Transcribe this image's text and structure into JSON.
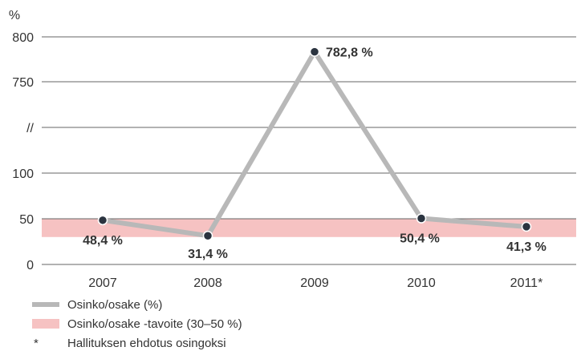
{
  "chart_data": {
    "type": "line",
    "ylabel": "%",
    "categories": [
      "2007",
      "2008",
      "2009",
      "2010",
      "2011*"
    ],
    "y_ticks": [
      "0",
      "50",
      "100",
      "//",
      "750",
      "800"
    ],
    "axis_break": "//",
    "series": [
      {
        "name": "Osinko/osake (%)",
        "values": [
          48.4,
          31.4,
          782.8,
          50.4,
          41.3
        ],
        "labels": [
          "48,4 %",
          "31,4 %",
          "782,8 %",
          "50,4 %",
          "41,3 %"
        ],
        "color": "#b8b8b8",
        "marker_color": "#2b3440"
      }
    ],
    "target_band": {
      "name": "Osinko/osake -tavoite (30–50 %)",
      "min": 30,
      "max": 50,
      "color": "#f6c2c2"
    },
    "grid": true,
    "legend_placement": "bottom-left"
  },
  "legend": {
    "series_label": "Osinko/osake (%)",
    "band_label": "Osinko/osake -tavoite (30–50 %)",
    "note_symbol": "*",
    "note_label": "Hallituksen ehdotus osingoksi"
  }
}
